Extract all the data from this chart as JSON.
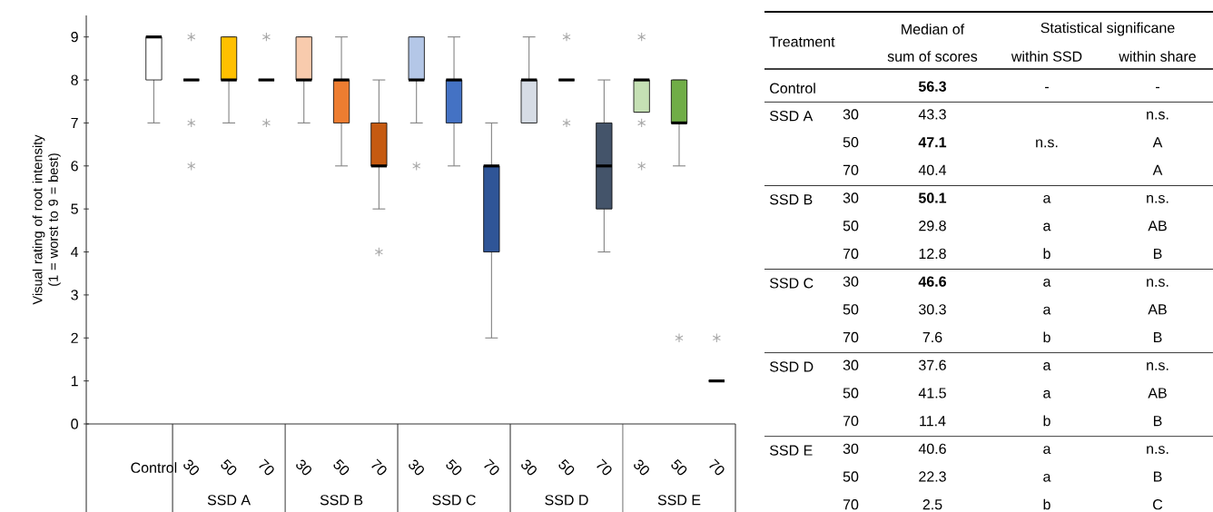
{
  "chart_data": [
    {
      "type": "box",
      "ylabel": "Visual rating of root intensity (1 = worst to 9 = best)",
      "categories": [
        "Control",
        "30",
        "50",
        "70",
        "30",
        "50",
        "70",
        "30",
        "50",
        "70",
        "30",
        "50",
        "70",
        "30",
        "50",
        "70"
      ],
      "annotations": [
        "SSD A",
        "SSD B",
        "SSD C",
        "SSD D",
        "SSD E"
      ],
      "ylim": [
        0,
        9.5
      ],
      "yticks": [
        0,
        1,
        2,
        3,
        4,
        5,
        6,
        7,
        8,
        9
      ],
      "colors": [
        "#ffffff",
        "#000000",
        "#ffc000",
        "#000000",
        "#f8cbad",
        "#ed7d31",
        "#c55a11",
        "#b4c7e7",
        "#4472c4",
        "#2f5597",
        "#d6dce5",
        "#000000",
        "#44546a",
        "#c5e0b4",
        "#70ad47",
        "#000000"
      ],
      "boxes": [
        {
          "low": 7,
          "q1": 8,
          "median": 9,
          "q3": 9,
          "high": 9
        },
        {
          "low": 8,
          "q1": 8,
          "median": 8,
          "q3": 8,
          "high": 8,
          "outliers": [
            9,
            7,
            6
          ]
        },
        {
          "low": 7,
          "q1": 8,
          "median": 8,
          "q3": 9,
          "high": 9
        },
        {
          "low": 8,
          "q1": 8,
          "median": 8,
          "q3": 8,
          "high": 8,
          "outliers": [
            9,
            7
          ]
        },
        {
          "low": 7,
          "q1": 8,
          "median": 8,
          "q3": 9,
          "high": 9
        },
        {
          "low": 6,
          "q1": 7,
          "median": 8,
          "q3": 8,
          "high": 9
        },
        {
          "low": 5,
          "q1": 6,
          "median": 6,
          "q3": 7,
          "high": 8,
          "outliers": [
            4
          ]
        },
        {
          "low": 7,
          "q1": 8,
          "median": 8,
          "q3": 9,
          "high": 9,
          "outliers": [
            6
          ]
        },
        {
          "low": 6,
          "q1": 7,
          "median": 8,
          "q3": 8,
          "high": 9
        },
        {
          "low": 2,
          "q1": 4,
          "median": 6,
          "q3": 6,
          "high": 7
        },
        {
          "low": 7,
          "q1": 7,
          "median": 8,
          "q3": 8,
          "high": 9
        },
        {
          "low": 8,
          "q1": 8,
          "median": 8,
          "q3": 8,
          "high": 8,
          "outliers": [
            9,
            7
          ]
        },
        {
          "low": 4,
          "q1": 5,
          "median": 6,
          "q3": 7,
          "high": 8
        },
        {
          "low": 7.25,
          "q1": 7.25,
          "median": 8,
          "q3": 8,
          "high": 8,
          "outliers": [
            9,
            7,
            6
          ]
        },
        {
          "low": 6,
          "q1": 7,
          "median": 7,
          "q3": 8,
          "high": 8,
          "outliers": [
            2
          ]
        },
        {
          "low": 1,
          "q1": 1,
          "median": 1,
          "q3": 1,
          "high": 1,
          "outliers": [
            2
          ]
        }
      ]
    },
    {
      "type": "other",
      "title": "Statistical significane",
      "categories": [
        "Treatment",
        "Median of",
        "sum of scores",
        "within SSD",
        "within share"
      ],
      "y_categories": [
        "Control",
        "SSD A",
        null,
        null,
        "SSD B",
        null,
        null,
        "SSD C",
        null,
        null,
        "SSD D",
        null,
        null,
        "SSD E",
        null,
        null
      ],
      "cell_labels": [
        [
          null,
          "**56.3**",
          "-",
          "-"
        ],
        [
          "30",
          "43.3",
          null,
          "n.s."
        ],
        [
          "50",
          "**47.1**",
          "n.s.",
          "A"
        ],
        [
          "70",
          "40.4",
          null,
          "A"
        ],
        [
          "30",
          "**50.1**",
          "a",
          "n.s."
        ],
        [
          "50",
          "29.8",
          "a",
          "AB"
        ],
        [
          "70",
          "12.8",
          "b",
          "B"
        ],
        [
          "30",
          "**46.6**",
          "a",
          "n.s."
        ],
        [
          "50",
          "30.3",
          "a",
          "AB"
        ],
        [
          "70",
          "7.6",
          "b",
          "B"
        ],
        [
          "30",
          "37.6",
          "a",
          "n.s."
        ],
        [
          "50",
          "41.5",
          "a",
          "AB"
        ],
        [
          "70",
          "11.4",
          "b",
          "B"
        ],
        [
          "30",
          "40.6",
          "a",
          "n.s."
        ],
        [
          "50",
          "22.3",
          "a",
          "B"
        ],
        [
          "70",
          "2.5",
          "b",
          "C"
        ]
      ]
    }
  ]
}
